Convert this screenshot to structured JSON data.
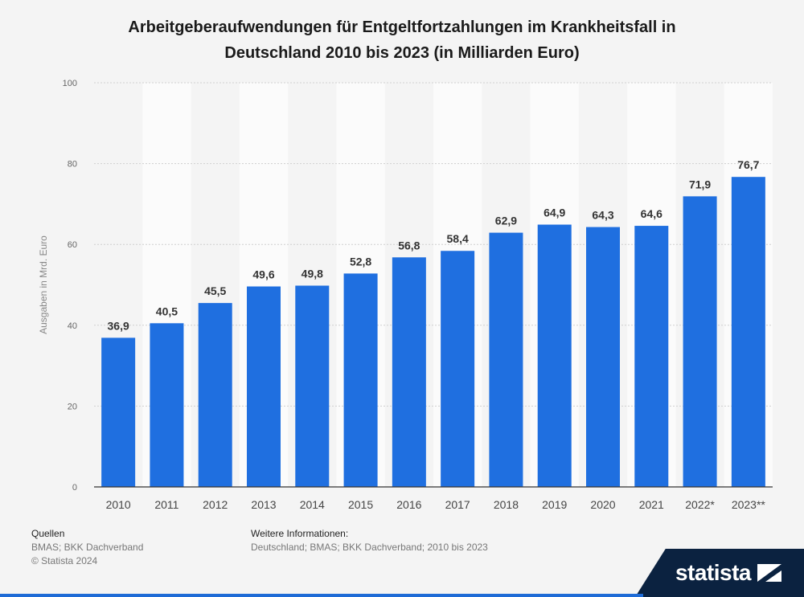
{
  "chart_data": {
    "type": "bar",
    "title": "Arbeitgeberaufwendungen für Entgeltfortzahlungen im Krankheitsfall in Deutschland 2010 bis 2023 (in Milliarden Euro)",
    "title_lines": [
      "Arbeitgeberaufwendungen für Entgeltfortzahlungen im Krankheitsfall in",
      "Deutschland 2010 bis 2023 (in Milliarden Euro)"
    ],
    "categories": [
      "2010",
      "2011",
      "2012",
      "2013",
      "2014",
      "2015",
      "2016",
      "2017",
      "2018",
      "2019",
      "2020",
      "2021",
      "2022*",
      "2023**"
    ],
    "values": [
      36.9,
      40.5,
      45.5,
      49.6,
      49.8,
      52.8,
      56.8,
      58.4,
      62.9,
      64.9,
      64.3,
      64.6,
      71.9,
      76.7
    ],
    "value_labels": [
      "36,9",
      "40,5",
      "45,5",
      "49,6",
      "49,8",
      "52,8",
      "56,8",
      "58,4",
      "62,9",
      "64,9",
      "64,3",
      "64,6",
      "71,9",
      "76,7"
    ],
    "xlabel": "",
    "ylabel": "Ausgaben in Mrd. Euro",
    "ylim": [
      0,
      100
    ],
    "yticks": [
      0,
      20,
      40,
      60,
      80,
      100
    ],
    "grid": true,
    "bar_color": "#1f6fe0"
  },
  "footer": {
    "sources_heading": "Quellen",
    "sources": "BMAS; BKK Dachverband",
    "copyright": "© Statista 2024",
    "info_heading": "Weitere Informationen:",
    "info": "Deutschland; BMAS; BKK Dachverband; 2010 bis 2023"
  },
  "logo": {
    "text": "statista",
    "icon": "statista-logo-icon",
    "color": "#0b2240"
  }
}
